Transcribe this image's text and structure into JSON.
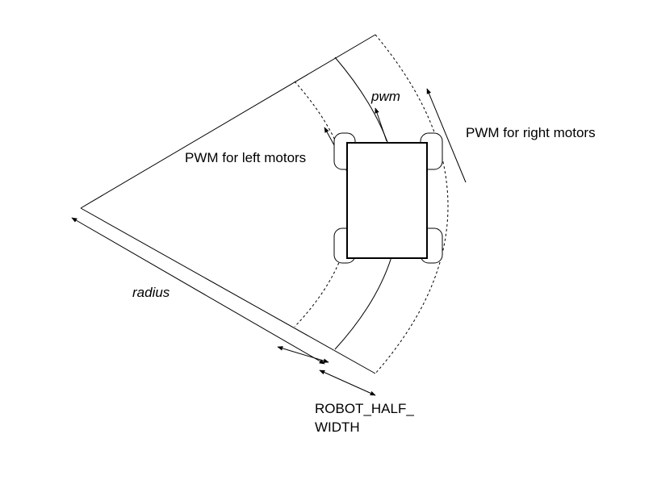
{
  "labels": {
    "pwm": "pwm",
    "pwm_right": "PWM for right motors",
    "pwm_left": "PWM for left motors",
    "radius": "radius",
    "half_width_line1": "ROBOT_HALF_",
    "half_width_line2": "WIDTH"
  },
  "colors": {
    "stroke": "#000000",
    "background": "#ffffff"
  }
}
